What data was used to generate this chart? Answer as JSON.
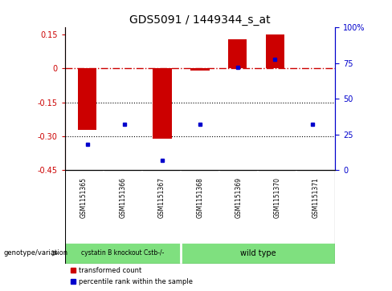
{
  "title": "GDS5091 / 1449344_s_at",
  "samples": [
    "GSM1151365",
    "GSM1151366",
    "GSM1151367",
    "GSM1151368",
    "GSM1151369",
    "GSM1151370",
    "GSM1151371"
  ],
  "transformed_count": [
    -0.27,
    0.0,
    -0.31,
    -0.01,
    0.13,
    0.15,
    0.0
  ],
  "percentile_rank": [
    18,
    32,
    7,
    32,
    72,
    78,
    32
  ],
  "ylim_left": [
    -0.45,
    0.18
  ],
  "ylim_right": [
    0,
    100
  ],
  "yticks_left": [
    0.15,
    0.0,
    -0.15,
    -0.3,
    -0.45
  ],
  "yticks_right": [
    100,
    75,
    50,
    25,
    0
  ],
  "ytick_labels_left": [
    "0.15",
    "0",
    "-0.15",
    "-0.30",
    "-0.45"
  ],
  "ytick_labels_right": [
    "100%",
    "75",
    "50",
    "25",
    "0"
  ],
  "hlines": [
    -0.15,
    -0.3
  ],
  "dashed_line_y": 0.0,
  "left_color": "#cc0000",
  "right_color": "#0000cc",
  "bar_color": "#cc0000",
  "dot_color": "#0000cc",
  "group1_label": "cystatin B knockout Cstb-/-",
  "group2_label": "wild type",
  "group1_count": 3,
  "genotype_label": "genotype/variation",
  "legend_label_red": "transformed count",
  "legend_label_blue": "percentile rank within the sample",
  "background_color": "#ffffff",
  "gray_color": "#d3d3d3",
  "green_color": "#7fe07f",
  "title_fontsize": 10,
  "bar_width": 0.5
}
